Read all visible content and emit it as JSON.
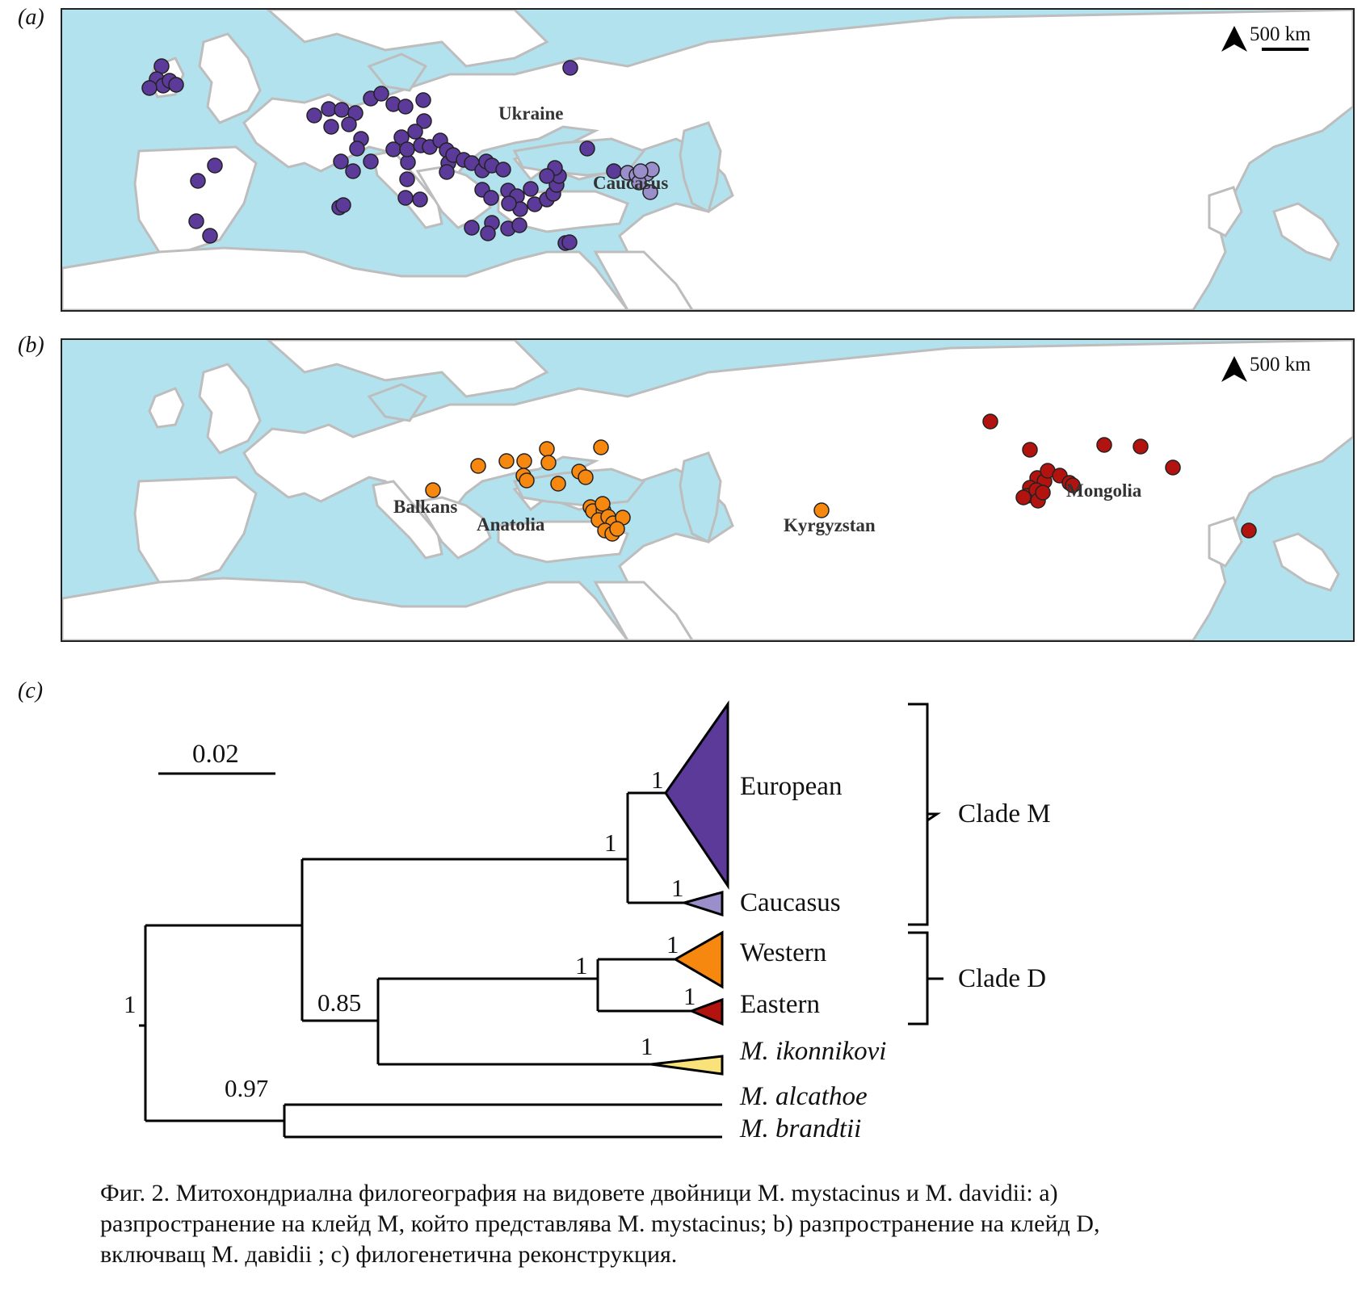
{
  "panel_a": {
    "label": "(a)",
    "scale_label": "500 km",
    "place_labels": [
      "Ukraine",
      "Caucasus"
    ]
  },
  "panel_b": {
    "label": "(b)",
    "scale_label": "500 km",
    "place_labels": [
      "Balkans",
      "Anatolia",
      "Kyrgyzstan",
      "Mongolia"
    ]
  },
  "panel_c": {
    "label": "(c)",
    "scale_bar_label": "0.02",
    "clades": [
      "European",
      "Caucasus",
      "Western",
      "Eastern"
    ],
    "outgroups": [
      "M. ikonnikovi",
      "M. alcathoe",
      "M. brandtii"
    ],
    "clade_groups": [
      "Clade M",
      "Clade D"
    ],
    "support_values": [
      "1",
      "1",
      "1",
      "1",
      "1",
      "1",
      "0.85",
      "1",
      "0.97",
      "1"
    ]
  },
  "colors": {
    "sea": "#b3e2ef",
    "land": "#ffffff",
    "coast": "#bdbdbd",
    "european": "#5b3a9a",
    "caucasus": "#9a8ecb",
    "western": "#f7880f",
    "eastern": "#b3130f",
    "ikonnikovi": "#f9e27a"
  },
  "caption": {
    "line1": "Фиг. 2. Митохондриална филогеография на видовете двойници M. mystacinus и M. davidii: a)",
    "line2": "разпространение на клейд M, който представлява M. mystacinus; b) разпространение на клейд D,",
    "line3": "включващ M. давidii ; c) филогенетична реконструкция."
  }
}
